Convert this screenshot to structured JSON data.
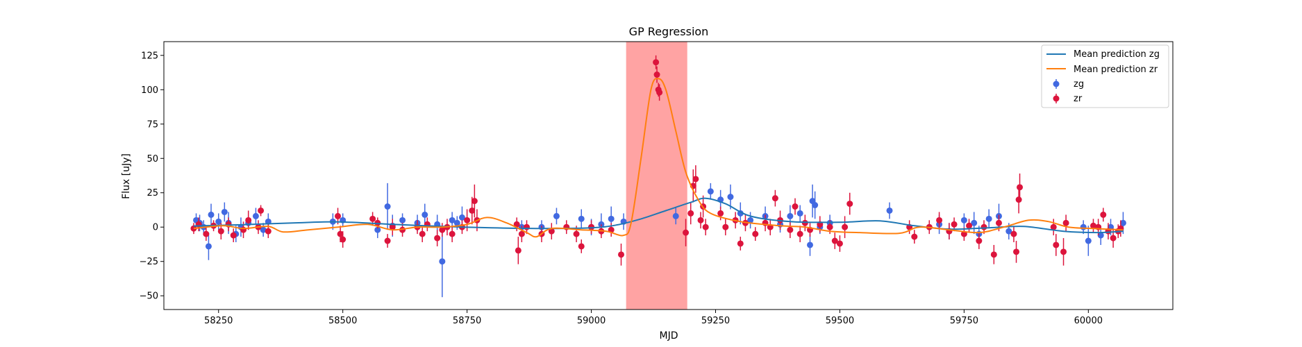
{
  "chart_data": {
    "type": "scatter",
    "title": "GP Regression",
    "xlabel": "MJD",
    "ylabel": "Flux [uJy]",
    "xlim": [
      58140,
      60170
    ],
    "ylim": [
      -60,
      135
    ],
    "xticks": [
      58250,
      58500,
      58750,
      59000,
      59250,
      59500,
      59750,
      60000
    ],
    "yticks": [
      -50,
      -25,
      0,
      25,
      50,
      75,
      100,
      125
    ],
    "grid": false,
    "legend_position": "top-right",
    "colors": {
      "zg_points": "#4169e1",
      "zr_points": "#dc143c",
      "mean_zg": "#1f77b4",
      "mean_zr": "#ff7f0e",
      "highlight": "#ff6666"
    },
    "highlight_band": {
      "x0": 59070,
      "x1": 59193
    },
    "legend": [
      "Mean prediction zg",
      "Mean prediction zr",
      "zg",
      "zr"
    ],
    "series": [
      {
        "name": "Mean prediction zg",
        "type": "line",
        "points": [
          [
            58200,
            0.8
          ],
          [
            58300,
            1.8
          ],
          [
            58400,
            3
          ],
          [
            58490,
            3.8
          ],
          [
            58600,
            2
          ],
          [
            58700,
            0.5
          ],
          [
            58800,
            -0.5
          ],
          [
            58900,
            -1
          ],
          [
            59000,
            -0.5
          ],
          [
            59050,
            1.5
          ],
          [
            59100,
            6
          ],
          [
            59150,
            12
          ],
          [
            59200,
            18
          ],
          [
            59230,
            21
          ],
          [
            59270,
            17
          ],
          [
            59320,
            8
          ],
          [
            59400,
            4
          ],
          [
            59500,
            3.5
          ],
          [
            59580,
            4.5
          ],
          [
            59650,
            1
          ],
          [
            59720,
            -1.5
          ],
          [
            59800,
            -0.5
          ],
          [
            59870,
            0.5
          ],
          [
            59950,
            -3
          ],
          [
            60020,
            -4
          ],
          [
            60070,
            -3
          ]
        ]
      },
      {
        "name": "Mean prediction zr",
        "type": "line",
        "points": [
          [
            58200,
            -1
          ],
          [
            58260,
            1
          ],
          [
            58300,
            -1
          ],
          [
            58350,
            0.5
          ],
          [
            58380,
            -3.5
          ],
          [
            58430,
            -2
          ],
          [
            58490,
            0
          ],
          [
            58550,
            2
          ],
          [
            58600,
            -2
          ],
          [
            58650,
            0
          ],
          [
            58700,
            0
          ],
          [
            58750,
            2
          ],
          [
            58790,
            7
          ],
          [
            58830,
            3
          ],
          [
            58870,
            -4
          ],
          [
            58890,
            -7
          ],
          [
            58920,
            -1
          ],
          [
            58980,
            -2
          ],
          [
            59030,
            -3
          ],
          [
            59065,
            -6
          ],
          [
            59080,
            3
          ],
          [
            59100,
            50
          ],
          [
            59120,
            100
          ],
          [
            59135,
            108
          ],
          [
            59150,
            100
          ],
          [
            59170,
            70
          ],
          [
            59190,
            40
          ],
          [
            59215,
            20
          ],
          [
            59240,
            10
          ],
          [
            59300,
            4
          ],
          [
            59380,
            1
          ],
          [
            59430,
            0
          ],
          [
            59480,
            -3
          ],
          [
            59540,
            -4
          ],
          [
            59620,
            -4.5
          ],
          [
            59660,
            0
          ],
          [
            59720,
            -2
          ],
          [
            59780,
            -4
          ],
          [
            59830,
            0
          ],
          [
            59880,
            5
          ],
          [
            59920,
            4
          ],
          [
            59960,
            0
          ],
          [
            60010,
            -1
          ],
          [
            60070,
            -2
          ]
        ]
      },
      {
        "name": "zg",
        "type": "errorbar",
        "points": [
          [
            58205,
            5,
            5
          ],
          [
            58212,
            3,
            6
          ],
          [
            58220,
            0,
            5
          ],
          [
            58230,
            -14,
            10
          ],
          [
            58235,
            9,
            8
          ],
          [
            58250,
            4,
            6
          ],
          [
            58262,
            11,
            7
          ],
          [
            58270,
            3,
            8
          ],
          [
            58285,
            -5,
            6
          ],
          [
            58295,
            0,
            7
          ],
          [
            58310,
            3,
            5
          ],
          [
            58325,
            8,
            6
          ],
          [
            58340,
            -2,
            5
          ],
          [
            58350,
            4,
            6
          ],
          [
            58480,
            4,
            6
          ],
          [
            58500,
            5,
            5
          ],
          [
            58570,
            -2,
            6
          ],
          [
            58590,
            15,
            17
          ],
          [
            58600,
            1,
            8
          ],
          [
            58620,
            5,
            5
          ],
          [
            58650,
            3,
            6
          ],
          [
            58665,
            9,
            8
          ],
          [
            58690,
            2,
            7
          ],
          [
            58700,
            -25,
            26
          ],
          [
            58720,
            5,
            6
          ],
          [
            58730,
            3,
            5
          ],
          [
            58740,
            7,
            8
          ],
          [
            58860,
            0,
            5
          ],
          [
            58900,
            0,
            5
          ],
          [
            58930,
            8,
            6
          ],
          [
            58980,
            6,
            7
          ],
          [
            59000,
            0,
            6
          ],
          [
            59020,
            2,
            8
          ],
          [
            59040,
            6,
            9
          ],
          [
            59065,
            4,
            6
          ],
          [
            59170,
            8,
            6
          ],
          [
            59240,
            26,
            6
          ],
          [
            59260,
            20,
            7
          ],
          [
            59280,
            22,
            9
          ],
          [
            59300,
            10,
            8
          ],
          [
            59320,
            5,
            6
          ],
          [
            59350,
            8,
            7
          ],
          [
            59380,
            2,
            6
          ],
          [
            59400,
            8,
            8
          ],
          [
            59420,
            10,
            6
          ],
          [
            59440,
            -13,
            8
          ],
          [
            59445,
            19,
            12
          ],
          [
            59450,
            16,
            10
          ],
          [
            59460,
            0,
            5
          ],
          [
            59480,
            3,
            6
          ],
          [
            59600,
            12,
            6
          ],
          [
            59700,
            2,
            7
          ],
          [
            59720,
            -3,
            6
          ],
          [
            59750,
            5,
            5
          ],
          [
            59770,
            3,
            8
          ],
          [
            59780,
            -5,
            6
          ],
          [
            59800,
            6,
            7
          ],
          [
            59820,
            8,
            9
          ],
          [
            59840,
            -3,
            6
          ],
          [
            59990,
            0,
            5
          ],
          [
            60000,
            -10,
            11
          ],
          [
            60025,
            -6,
            7
          ],
          [
            60045,
            0,
            6
          ],
          [
            60070,
            3,
            8
          ]
        ]
      },
      {
        "name": "zr",
        "type": "errorbar",
        "points": [
          [
            58200,
            -1,
            4
          ],
          [
            58210,
            2,
            5
          ],
          [
            58225,
            -5,
            5
          ],
          [
            58240,
            1,
            4
          ],
          [
            58255,
            -3,
            6
          ],
          [
            58270,
            2,
            5
          ],
          [
            58280,
            -6,
            5
          ],
          [
            58300,
            -2,
            6
          ],
          [
            58310,
            5,
            7
          ],
          [
            58330,
            0,
            5
          ],
          [
            58335,
            12,
            4
          ],
          [
            58350,
            -3,
            5
          ],
          [
            58490,
            8,
            6
          ],
          [
            58495,
            -5,
            6
          ],
          [
            58500,
            -9,
            6
          ],
          [
            58560,
            6,
            5
          ],
          [
            58570,
            3,
            4
          ],
          [
            58590,
            -10,
            5
          ],
          [
            58600,
            0,
            6
          ],
          [
            58620,
            -2,
            5
          ],
          [
            58650,
            0,
            5
          ],
          [
            58660,
            -5,
            6
          ],
          [
            58670,
            2,
            5
          ],
          [
            58690,
            -8,
            6
          ],
          [
            58700,
            -2,
            5
          ],
          [
            58710,
            0,
            6
          ],
          [
            58720,
            -5,
            6
          ],
          [
            58740,
            0,
            5
          ],
          [
            58750,
            5,
            8
          ],
          [
            58760,
            12,
            10
          ],
          [
            58765,
            19,
            12
          ],
          [
            58770,
            5,
            8
          ],
          [
            58850,
            2,
            5
          ],
          [
            58853,
            -17,
            10
          ],
          [
            58860,
            -5,
            6
          ],
          [
            58870,
            0,
            5
          ],
          [
            58900,
            -5,
            6
          ],
          [
            58920,
            -3,
            6
          ],
          [
            58950,
            0,
            5
          ],
          [
            58970,
            -5,
            6
          ],
          [
            58980,
            -14,
            5
          ],
          [
            59000,
            0,
            5
          ],
          [
            59020,
            -3,
            5
          ],
          [
            59040,
            -2,
            5
          ],
          [
            59060,
            -20,
            8
          ],
          [
            59130,
            120,
            5
          ],
          [
            59132,
            111,
            6
          ],
          [
            59135,
            100,
            5
          ],
          [
            59137,
            98,
            6
          ],
          [
            59190,
            -4,
            10
          ],
          [
            59200,
            10,
            8
          ],
          [
            59205,
            30,
            12
          ],
          [
            59210,
            35,
            10
          ],
          [
            59220,
            5,
            6
          ],
          [
            59225,
            15,
            8
          ],
          [
            59230,
            0,
            6
          ],
          [
            59260,
            10,
            5
          ],
          [
            59270,
            0,
            6
          ],
          [
            59290,
            5,
            6
          ],
          [
            59300,
            -12,
            5
          ],
          [
            59310,
            3,
            6
          ],
          [
            59330,
            -5,
            5
          ],
          [
            59350,
            3,
            6
          ],
          [
            59360,
            0,
            6
          ],
          [
            59370,
            21,
            6
          ],
          [
            59380,
            5,
            7
          ],
          [
            59400,
            -2,
            6
          ],
          [
            59410,
            15,
            6
          ],
          [
            59420,
            -5,
            6
          ],
          [
            59430,
            3,
            6
          ],
          [
            59440,
            -2,
            5
          ],
          [
            59460,
            2,
            6
          ],
          [
            59480,
            0,
            5
          ],
          [
            59490,
            -10,
            6
          ],
          [
            59500,
            -12,
            6
          ],
          [
            59510,
            0,
            8
          ],
          [
            59520,
            17,
            8
          ],
          [
            59640,
            0,
            5
          ],
          [
            59650,
            -7,
            5
          ],
          [
            59680,
            0,
            5
          ],
          [
            59700,
            5,
            6
          ],
          [
            59720,
            -3,
            6
          ],
          [
            59730,
            2,
            5
          ],
          [
            59750,
            -5,
            5
          ],
          [
            59760,
            1,
            5
          ],
          [
            59780,
            -10,
            6
          ],
          [
            59790,
            0,
            5
          ],
          [
            59810,
            -20,
            7
          ],
          [
            59820,
            3,
            6
          ],
          [
            59850,
            -5,
            6
          ],
          [
            59855,
            -18,
            8
          ],
          [
            59860,
            20,
            10
          ],
          [
            59862,
            29,
            10
          ],
          [
            59930,
            0,
            6
          ],
          [
            59935,
            -13,
            8
          ],
          [
            59950,
            -18,
            10
          ],
          [
            59955,
            3,
            6
          ],
          [
            60010,
            1,
            5
          ],
          [
            60020,
            0,
            6
          ],
          [
            60030,
            9,
            5
          ],
          [
            60040,
            -3,
            6
          ],
          [
            60050,
            -8,
            7
          ],
          [
            60060,
            -3,
            5
          ],
          [
            60065,
            -1,
            6
          ]
        ]
      }
    ]
  }
}
